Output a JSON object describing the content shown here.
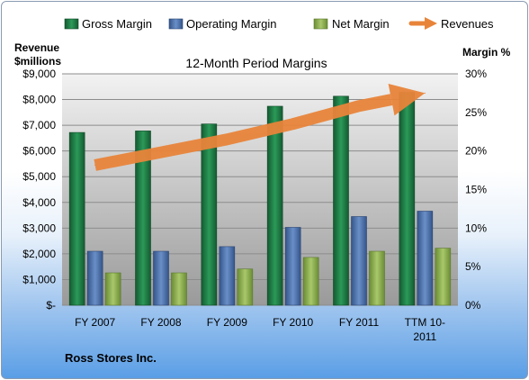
{
  "chart_data": {
    "type": "bar",
    "title": "12-Month Period Margins",
    "company": "Ross Stores Inc.",
    "categories": [
      "FY 2007",
      "FY 2008",
      "FY 2009",
      "FY 2010",
      "FY 2011",
      "TTM 10-2011"
    ],
    "category_lines": [
      [
        "FY 2007"
      ],
      [
        "FY 2008"
      ],
      [
        "FY 2009"
      ],
      [
        "FY 2010"
      ],
      [
        "FY 2011"
      ],
      [
        "TTM 10-",
        "2011"
      ]
    ],
    "left_axis": {
      "label_lines": [
        "Revenue",
        "$millions"
      ],
      "range": [
        0,
        9000
      ],
      "ticks": [
        "$-",
        "$1,000",
        "$2,000",
        "$3,000",
        "$4,000",
        "$5,000",
        "$6,000",
        "$7,000",
        "$8,000",
        "$9,000"
      ]
    },
    "right_axis": {
      "label": "Margin %",
      "range": [
        0,
        30
      ],
      "ticks": [
        "0%",
        "5%",
        "10%",
        "15%",
        "20%",
        "25%",
        "30%"
      ]
    },
    "series": [
      {
        "name": "Gross Margin",
        "kind": "bar",
        "axis": "right",
        "color": "#1e7a44",
        "values": [
          22.4,
          22.6,
          23.5,
          25.8,
          27.1,
          27.6
        ]
      },
      {
        "name": "Operating Margin",
        "kind": "bar",
        "axis": "right",
        "color": "#4a6fa5",
        "values": [
          7.0,
          7.0,
          7.6,
          10.1,
          11.5,
          12.2
        ]
      },
      {
        "name": "Net Margin",
        "kind": "bar",
        "axis": "right",
        "color": "#8db050",
        "values": [
          4.2,
          4.2,
          4.7,
          6.2,
          7.0,
          7.4
        ]
      },
      {
        "name": "Revenues",
        "kind": "arrow",
        "axis": "left",
        "color": "#e8843a",
        "values": [
          5450,
          5950,
          6450,
          7050,
          7750,
          8250
        ]
      }
    ],
    "grid": true,
    "legend_position": "top"
  }
}
